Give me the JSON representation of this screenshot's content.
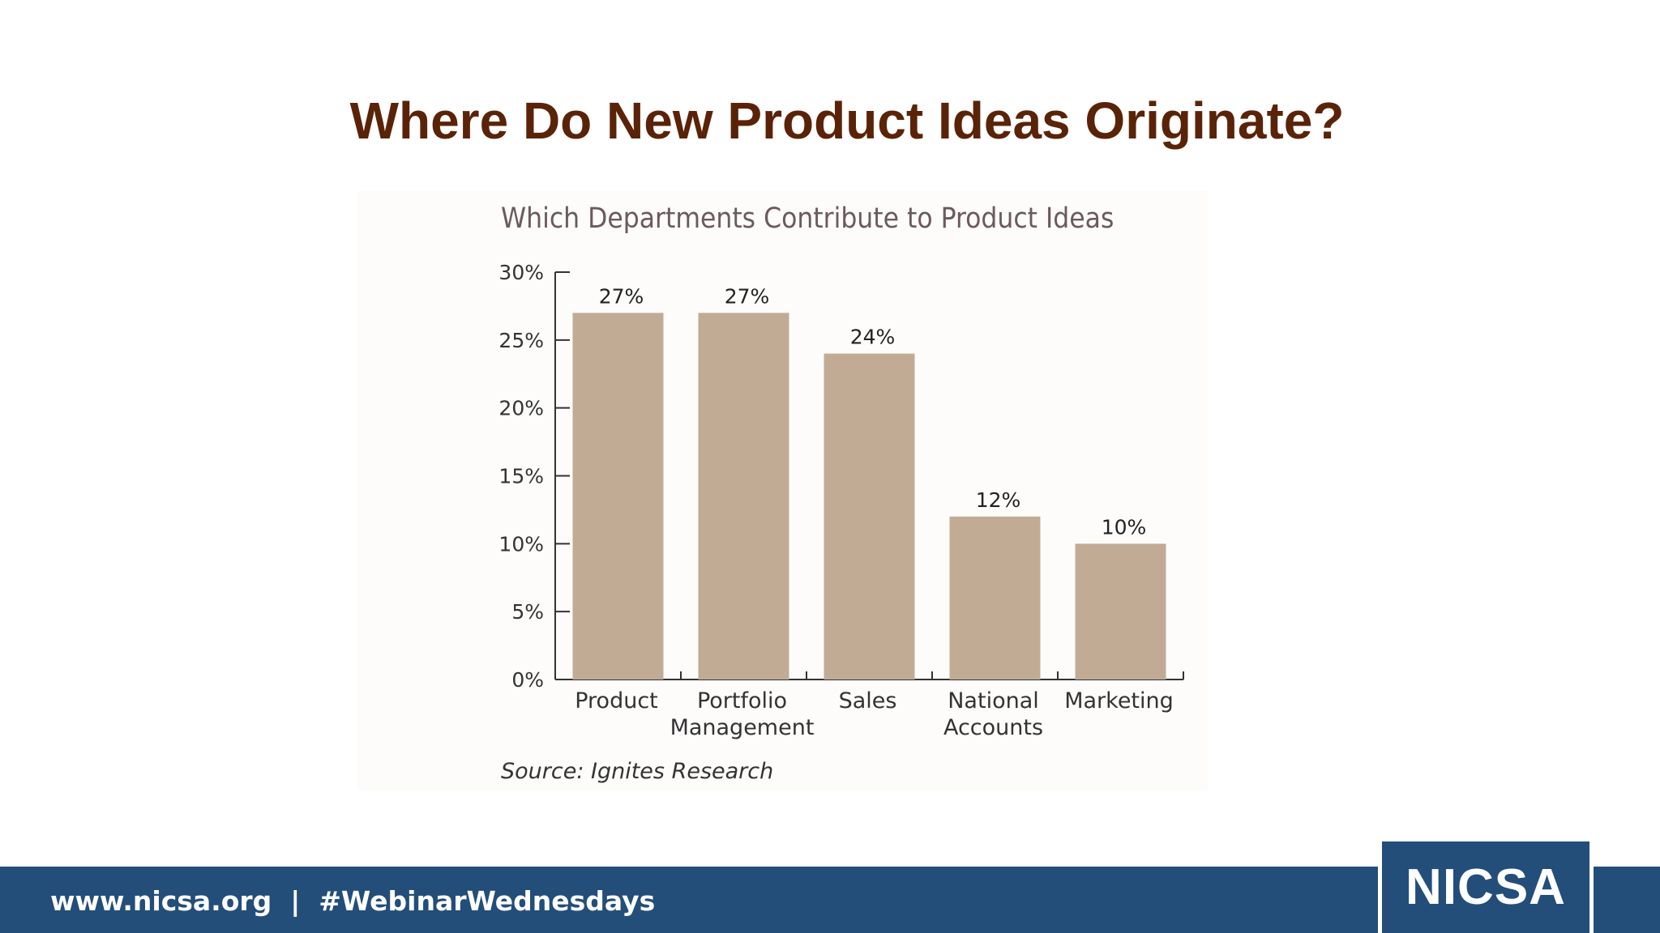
{
  "slide": {
    "title": "Where Do New Product Ideas Originate?"
  },
  "chart_data": {
    "type": "bar",
    "title": "Which Departments Contribute to Product Ideas",
    "categories": [
      [
        "Product"
      ],
      [
        "Portfolio",
        "Management"
      ],
      [
        "Sales"
      ],
      [
        "National",
        "Accounts"
      ],
      [
        "Marketing"
      ]
    ],
    "values": [
      27,
      27,
      24,
      12,
      10
    ],
    "data_labels": [
      "27%",
      "27%",
      "24%",
      "12%",
      "10%"
    ],
    "yticks": [
      0,
      5,
      10,
      15,
      20,
      25,
      30
    ],
    "ytick_labels": [
      "0%",
      "5%",
      "10%",
      "15%",
      "20%",
      "25%",
      "30%"
    ],
    "ylim": [
      0,
      30
    ],
    "xlabel": "",
    "ylabel": "",
    "grid": false,
    "legend": "none",
    "bar_color": "#c2ab94",
    "source": "Source: Ignites Research"
  },
  "footer": {
    "text": "www.nicsa.org  |  #WebinarWednesdays",
    "logo_text": "NICSA",
    "background_color": "#234e79"
  }
}
